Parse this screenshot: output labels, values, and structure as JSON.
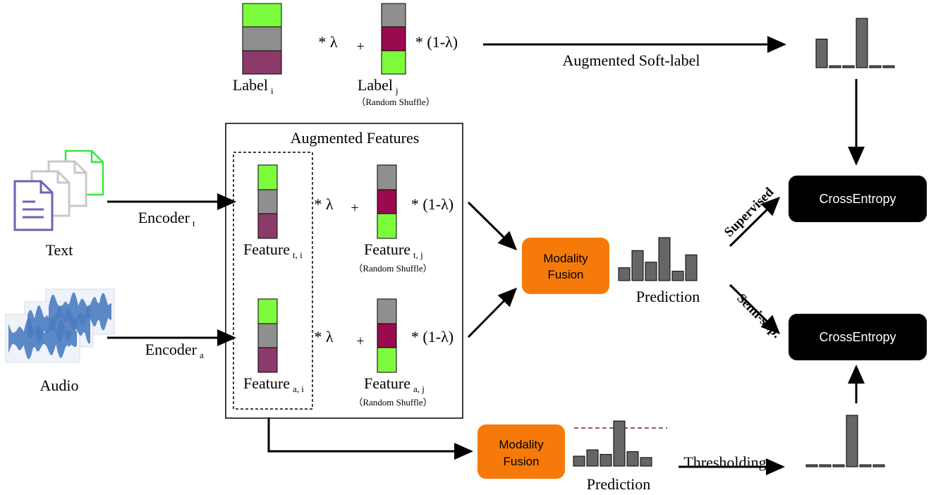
{
  "colors": {
    "green": "#7CFC3C",
    "gray": "#8F8F8F",
    "mauve": "#8C3A6A",
    "crimson": "#9A0A4E",
    "orange": "#F57A0A",
    "bar": "#666666",
    "black_box": "#000000",
    "dashed_threshold": "#6B2A2A",
    "doc_purple": "#6B63B5",
    "doc_gray": "#C8C8C8",
    "doc_green": "#39E63A",
    "wave_blue": "#4A7CC0"
  },
  "icons": {
    "text_input": "document-stack-icon",
    "audio_input": "waveform-stack-icon"
  },
  "top": {
    "mult_lambda": "* λ",
    "plus": "+",
    "mult_one_minus_lambda": "* (1-λ)",
    "label_i": "Label",
    "label_i_sub": "i",
    "label_j": "Label",
    "label_j_sub": "j",
    "shuffle": "（Random Shuffle）",
    "soft_label_arrow": "Augmented Soft-label"
  },
  "inputs": {
    "text": "Text",
    "audio": "Audio",
    "encoder_t": "Encoder",
    "encoder_t_sub": "t",
    "encoder_a": "Encoder",
    "encoder_a_sub": "a"
  },
  "features": {
    "box_title": "Augmented Features",
    "mult_lambda": "* λ",
    "plus": "+",
    "mult_one_minus_lambda": "* (1-λ)",
    "feature_t_i": "Feature",
    "feature_t_i_sub": "t, i",
    "feature_t_j": "Feature",
    "feature_t_j_sub": "t, j",
    "feature_a_i": "Feature",
    "feature_a_i_sub": "a, i",
    "feature_a_j": "Feature",
    "feature_a_j_sub": "a, j",
    "shuffle_t": "（Random Shuffle）",
    "shuffle_a": "（Random Shuffle）"
  },
  "fusion": {
    "top_line1": "Modality",
    "top_line2": "Fusion",
    "bottom_line1": "Modality",
    "bottom_line2": "Fusion"
  },
  "prediction": {
    "main_label": "Prediction",
    "bottom_label": "Prediction",
    "main_bars": [
      0.3,
      0.7,
      0.43,
      1.0,
      0.22,
      0.6
    ],
    "bottom_bars": [
      0.22,
      0.36,
      0.26,
      1.0,
      0.32,
      0.19
    ],
    "soft_label_bars": [
      0.58,
      0.04,
      0.04,
      1.0,
      0.04,
      0.04
    ],
    "threshold_bars": [
      0.04,
      0.04,
      0.04,
      1.0,
      0.04,
      0.04
    ]
  },
  "loss": {
    "supervised_label": "Supervised",
    "semisup_label": "Semi-sup.",
    "ce_top": "CrossEntropy",
    "ce_bottom": "CrossEntropy",
    "thresholding": "Thresholding"
  }
}
